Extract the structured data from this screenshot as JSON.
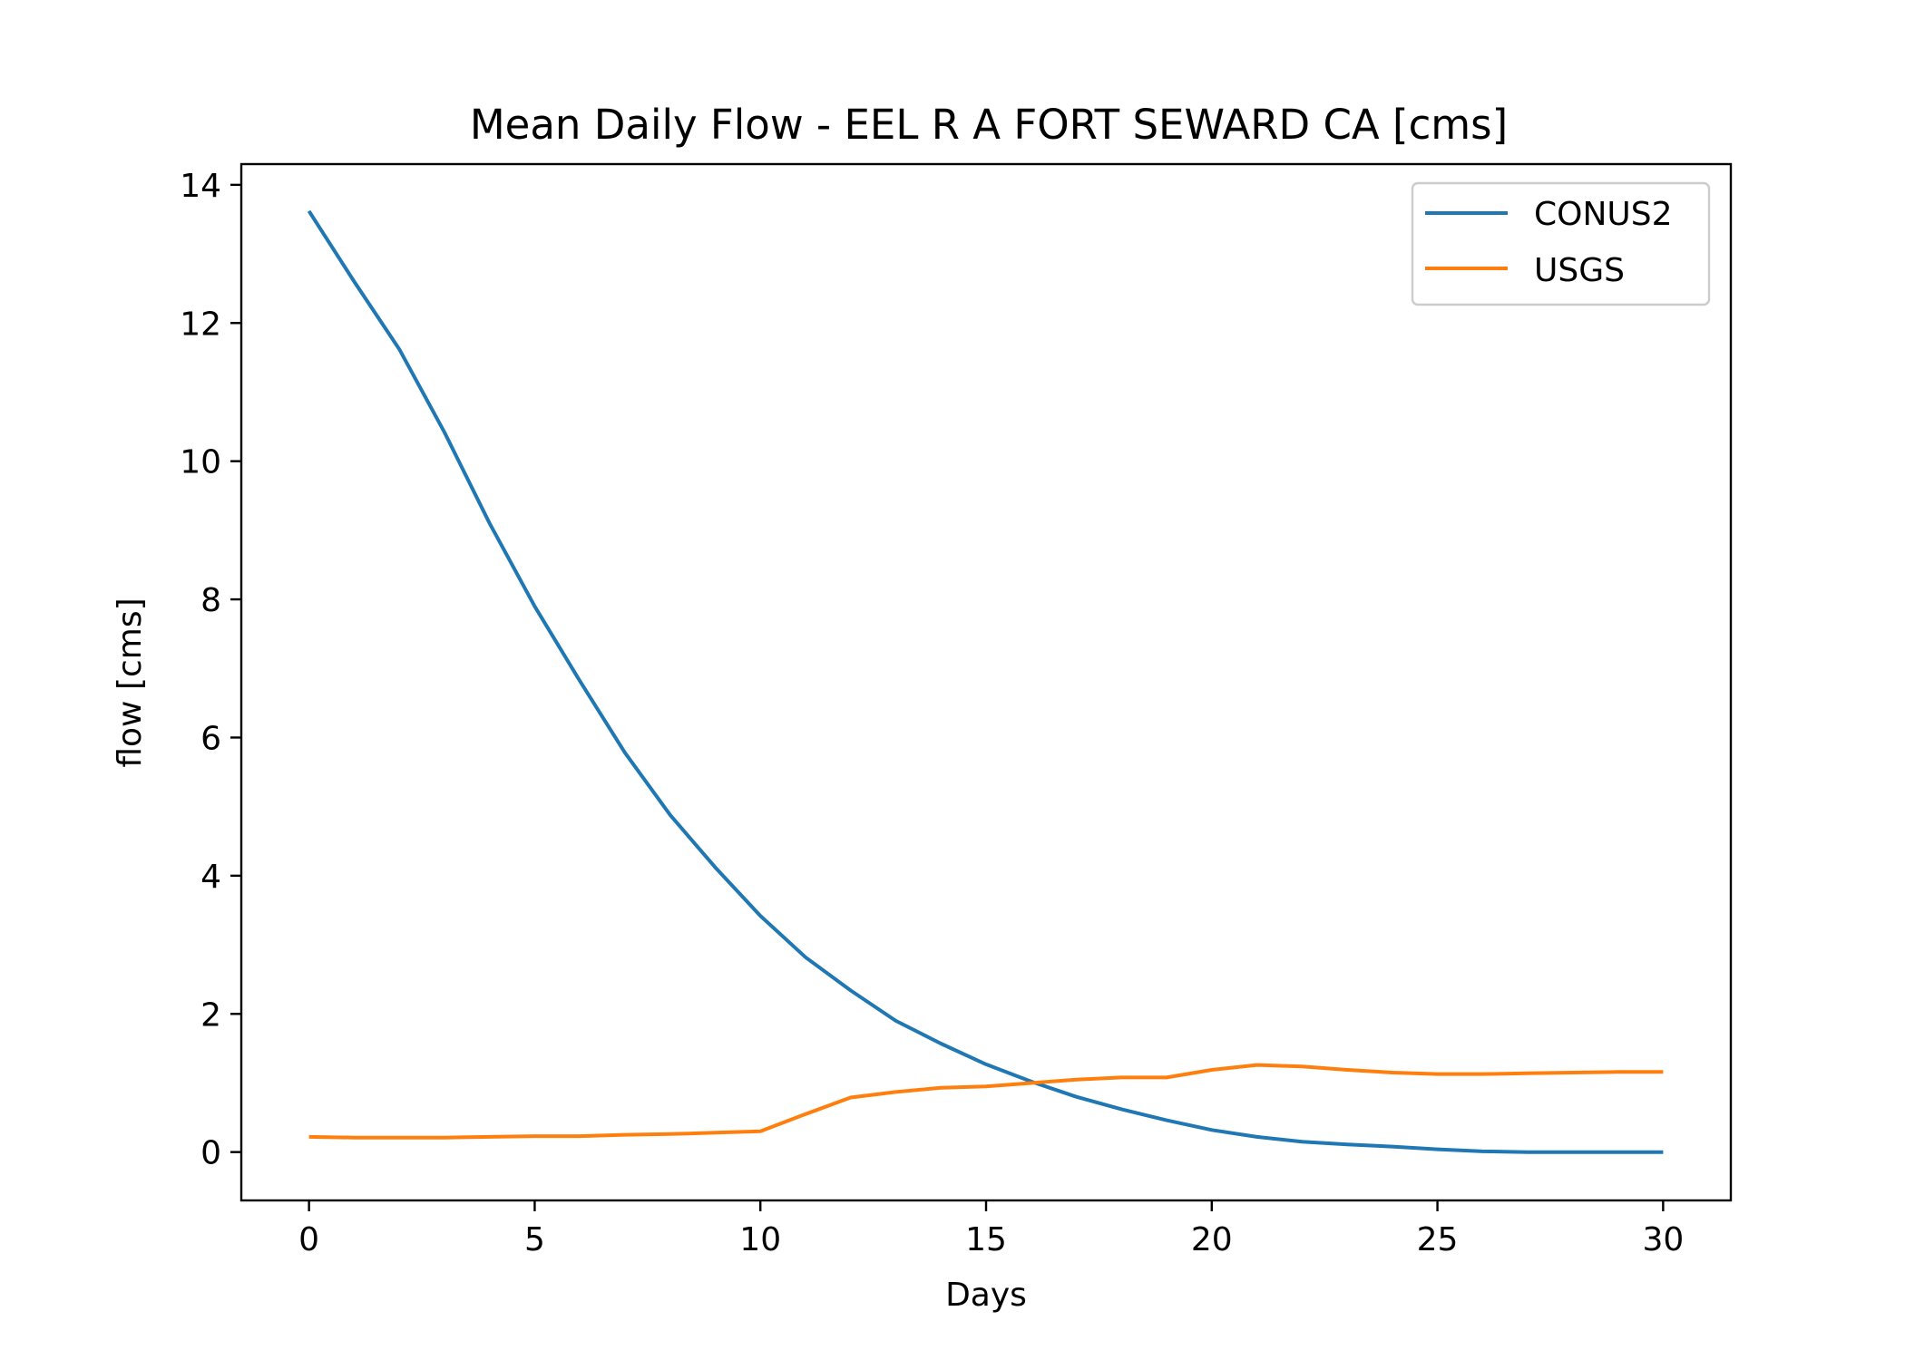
{
  "chart_data": {
    "type": "line",
    "title": "Mean Daily Flow - EEL R A FORT SEWARD CA [cms]",
    "xlabel": "Days",
    "ylabel": "flow [cms]",
    "xlim": [
      -1.5,
      31.5
    ],
    "ylim": [
      -0.7,
      14.3
    ],
    "xticks": [
      0,
      5,
      10,
      15,
      20,
      25,
      30
    ],
    "yticks": [
      0,
      2,
      4,
      6,
      8,
      10,
      12,
      14
    ],
    "grid": false,
    "legend": "top-right",
    "x": [
      0,
      1,
      2,
      3,
      4,
      5,
      6,
      7,
      8,
      9,
      10,
      11,
      12,
      13,
      14,
      15,
      16,
      17,
      18,
      19,
      20,
      21,
      22,
      23,
      24,
      25,
      26,
      27,
      28,
      29,
      30
    ],
    "series": [
      {
        "name": "CONUS2",
        "color": "#1f77b4",
        "values": [
          13.62,
          12.6,
          11.62,
          10.42,
          9.1,
          7.9,
          6.82,
          5.78,
          4.88,
          4.12,
          3.42,
          2.82,
          2.34,
          1.9,
          1.57,
          1.27,
          1.02,
          0.8,
          0.62,
          0.46,
          0.32,
          0.22,
          0.15,
          0.11,
          0.08,
          0.04,
          0.01,
          0.0,
          0.0,
          0.0,
          0.0
        ]
      },
      {
        "name": "USGS",
        "color": "#ff7f0e",
        "values": [
          0.22,
          0.21,
          0.21,
          0.21,
          0.22,
          0.23,
          0.23,
          0.25,
          0.26,
          0.28,
          0.3,
          0.55,
          0.79,
          0.87,
          0.93,
          0.95,
          1.0,
          1.05,
          1.08,
          1.08,
          1.19,
          1.26,
          1.24,
          1.19,
          1.15,
          1.13,
          1.13,
          1.14,
          1.15,
          1.16,
          1.16
        ]
      }
    ]
  }
}
